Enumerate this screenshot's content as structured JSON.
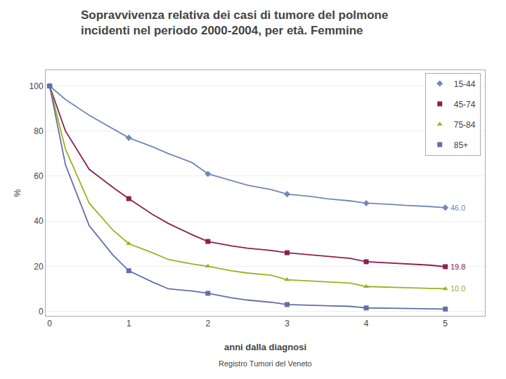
{
  "chart_data": {
    "type": "line",
    "title": "Sopravvivenza relativa dei casi di tumore del polmone\nincidenti nel periodo 2000-2004, per età. Femmine",
    "xlabel": "anni dalla diagnosi",
    "ylabel": "%",
    "footer": "Registro Tumori del Veneto",
    "series": [
      {
        "name": "15-44",
        "color": "#7388b8",
        "marker": "diamond",
        "x": [
          0,
          0.2,
          0.5,
          0.8,
          1,
          1.3,
          1.5,
          1.8,
          2,
          2.3,
          2.5,
          2.8,
          3,
          3.3,
          3.5,
          3.8,
          4,
          4.3,
          4.5,
          4.8,
          5
        ],
        "values": [
          100,
          94,
          87,
          81,
          77,
          73,
          70,
          66,
          61,
          58,
          56,
          54,
          52,
          51,
          50,
          49,
          48,
          47.5,
          47,
          46.5,
          46.0
        ],
        "marker_x": [
          0,
          1,
          2,
          3,
          4,
          5
        ],
        "marker_values": [
          100,
          77,
          61,
          52,
          48,
          46.0
        ],
        "end_label": "46.0"
      },
      {
        "name": "45-74",
        "color": "#8b2050",
        "marker": "square",
        "x": [
          0,
          0.2,
          0.5,
          0.8,
          1,
          1.3,
          1.5,
          1.8,
          2,
          2.3,
          2.5,
          2.8,
          3,
          3.3,
          3.5,
          3.8,
          4,
          4.3,
          4.5,
          4.8,
          5
        ],
        "values": [
          100,
          80,
          63,
          55,
          50,
          43,
          39,
          34,
          31,
          29,
          28,
          27,
          26,
          25,
          24.5,
          23.5,
          22,
          21.5,
          21,
          20.5,
          19.8
        ],
        "marker_x": [
          0,
          1,
          2,
          3,
          4,
          5
        ],
        "marker_values": [
          100,
          50,
          31,
          26,
          22,
          19.8
        ],
        "end_label": "19.8"
      },
      {
        "name": "75-84",
        "color": "#a0b020",
        "marker": "triangle-up",
        "x": [
          0,
          0.2,
          0.5,
          0.8,
          1,
          1.3,
          1.5,
          1.8,
          2,
          2.3,
          2.5,
          2.8,
          3,
          3.3,
          3.5,
          3.8,
          4,
          4.3,
          4.5,
          4.8,
          5
        ],
        "values": [
          100,
          72,
          48,
          36,
          30,
          26,
          23,
          21,
          20,
          18,
          17,
          16,
          14,
          13.5,
          13,
          12.5,
          11,
          10.8,
          10.5,
          10.2,
          10.0
        ],
        "marker_x": [
          0,
          1,
          2,
          3,
          4,
          5
        ],
        "marker_values": [
          100,
          30,
          20,
          14,
          11,
          10.0
        ],
        "end_label": "10.0"
      },
      {
        "name": "85+",
        "color": "#6070a8",
        "marker": "square",
        "x": [
          0,
          0.2,
          0.5,
          0.8,
          1,
          1.3,
          1.5,
          1.8,
          2,
          2.3,
          2.5,
          2.8,
          3,
          3.3,
          3.5,
          3.8,
          4,
          4.3,
          4.5,
          4.8,
          5
        ],
        "values": [
          100,
          65,
          38,
          25,
          18,
          13,
          10,
          9,
          8,
          6,
          5,
          4,
          3,
          2.8,
          2.5,
          2.2,
          1.5,
          1.4,
          1.3,
          1.1,
          1.0
        ],
        "marker_x": [
          0,
          1,
          2,
          3,
          4,
          5
        ],
        "marker_values": [
          100,
          18,
          8,
          3,
          1.5,
          1.0
        ]
      }
    ],
    "xlim": [
      -0.05,
      5.5
    ],
    "ylim": [
      -2,
      107
    ],
    "xticks": [
      0,
      1,
      2,
      3,
      4,
      5
    ],
    "yticks": [
      0,
      20,
      40,
      60,
      80,
      100
    ],
    "grid": true,
    "legend": "upper right"
  }
}
